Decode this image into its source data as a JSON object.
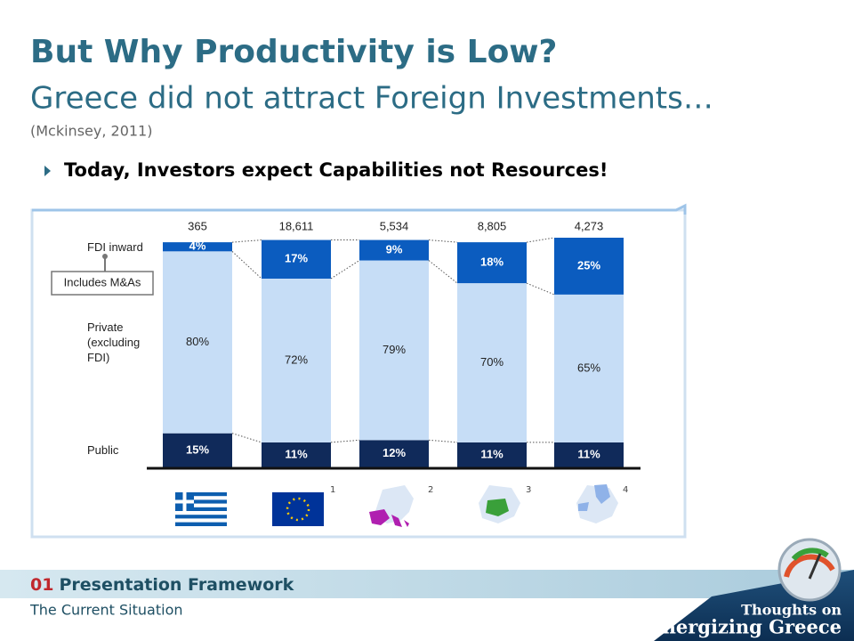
{
  "title": "But Why Productivity is Low?",
  "subtitle": "Greece did not attract Foreign Investments…",
  "source": "(Mckinsey, 2011)",
  "bullet": "Today, Investors expect Capabilities not Resources!",
  "footer": {
    "section_number": "01",
    "section": "Presentation Framework",
    "subsection": "The Current Situation"
  },
  "logo": {
    "line1": "Thoughts on",
    "line2": "Re-energizing Greece"
  },
  "chart_data": {
    "type": "stacked_bar",
    "categories": [
      null,
      null,
      null,
      null,
      null
    ],
    "footnote_marks": [
      "1",
      "2",
      "3",
      "4"
    ],
    "annotation": "Includes M&As",
    "totals": {
      "values": [
        365,
        18611,
        5534,
        8805,
        4273
      ],
      "value_labels": [
        "365",
        "18,611",
        "5,534",
        "8,805",
        "4,273"
      ]
    },
    "series": [
      {
        "name": "Public",
        "color": "#102a5a",
        "label_color": "#ffffff",
        "values": [
          15,
          11,
          12,
          11,
          11
        ],
        "value_labels": [
          "15%",
          "11%",
          "12%",
          "11%",
          "11%"
        ]
      },
      {
        "name": "Private (excluding FDI)",
        "color": "#c6ddf6",
        "label_color": "#222222",
        "values": [
          80,
          72,
          79,
          70,
          65
        ],
        "value_labels": [
          "80%",
          "72%",
          "79%",
          "70%",
          "65%"
        ]
      },
      {
        "name": "FDI inward",
        "color": "#0b5cbf",
        "label_color": "#ffffff",
        "values": [
          4,
          17,
          9,
          18,
          25
        ],
        "value_labels": [
          "4%",
          "17%",
          "9%",
          "18%",
          "25%"
        ]
      }
    ]
  }
}
